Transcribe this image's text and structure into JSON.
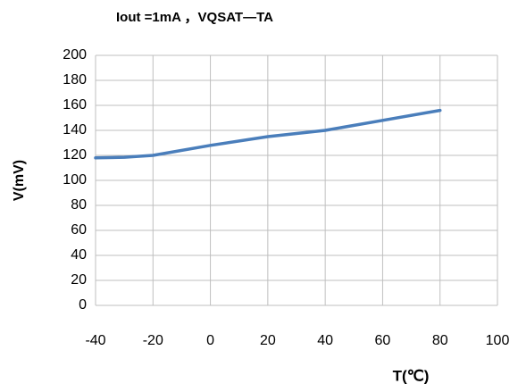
{
  "chart_data": {
    "type": "line",
    "title": "Iout =1mA   ，VQSAT—TA",
    "x_label": "T(℃)",
    "y_label": "V(mV)",
    "x": [
      -40,
      -30,
      -20,
      0,
      20,
      40,
      60,
      80
    ],
    "series": [
      {
        "name": "VQSAT",
        "color": "#4a7ebb",
        "values": [
          118,
          118.5,
          120,
          128,
          135,
          140,
          148,
          156
        ]
      }
    ],
    "xlim": [
      -40,
      100
    ],
    "xticks": [
      -40,
      -20,
      0,
      20,
      40,
      60,
      80,
      100
    ],
    "ylim": [
      0,
      200
    ],
    "yticks": [
      0,
      20,
      40,
      60,
      80,
      100,
      120,
      140,
      160,
      180,
      200
    ],
    "grid": true
  }
}
